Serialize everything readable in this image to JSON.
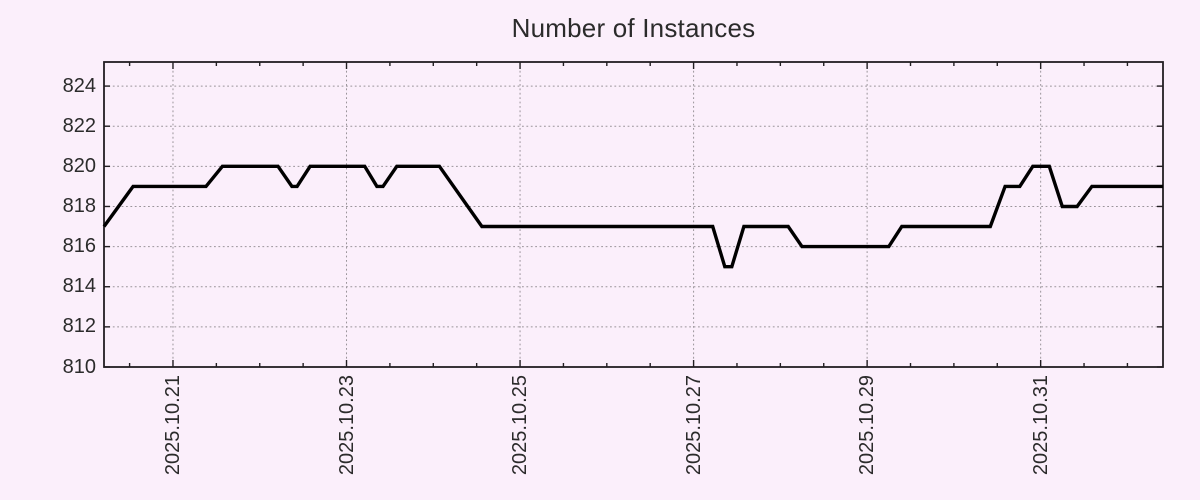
{
  "colors": {
    "background": "#fbeffb",
    "line": "#000000",
    "grid": "#9a949a",
    "axis": "#221e22",
    "text": "#2b2b2b"
  },
  "chart_data": {
    "type": "line",
    "title": "Number of Instances",
    "legend": "none",
    "grid_style": "dotted",
    "x_axis": {
      "tick_labels": [
        "2025.10.21",
        "2025.10.23",
        "2025.10.25",
        "2025.10.27",
        "2025.10.29",
        "2025.10.31"
      ],
      "tick_positions_days": [
        0,
        2,
        4,
        6,
        8,
        10
      ],
      "minor_tick_step_days": 0.5,
      "range_days": [
        -0.795,
        11.41
      ],
      "tick_label_rotation_deg": -90
    },
    "y_axis": {
      "tick_labels": [
        "810",
        "812",
        "814",
        "816",
        "818",
        "820",
        "822",
        "824"
      ],
      "tick_values": [
        810,
        812,
        814,
        816,
        818,
        820,
        822,
        824
      ],
      "gridline_values": [
        812,
        814,
        816,
        818,
        820,
        822,
        824
      ],
      "range": [
        810,
        825.2
      ]
    },
    "series": [
      {
        "name": "instances",
        "color": "#000000",
        "points_day_value": [
          [
            -0.795,
            817
          ],
          [
            -0.46,
            819
          ],
          [
            0.38,
            819
          ],
          [
            0.57,
            820
          ],
          [
            1.21,
            820
          ],
          [
            1.37,
            819
          ],
          [
            1.43,
            819
          ],
          [
            1.58,
            820
          ],
          [
            2.21,
            820
          ],
          [
            2.35,
            819
          ],
          [
            2.42,
            819
          ],
          [
            2.58,
            820
          ],
          [
            3.07,
            820
          ],
          [
            3.56,
            817
          ],
          [
            6.22,
            817
          ],
          [
            6.36,
            815
          ],
          [
            6.44,
            815
          ],
          [
            6.58,
            817
          ],
          [
            7.09,
            817
          ],
          [
            7.25,
            816
          ],
          [
            8.25,
            816
          ],
          [
            8.4,
            817
          ],
          [
            9.42,
            817
          ],
          [
            9.59,
            819
          ],
          [
            9.76,
            819
          ],
          [
            9.91,
            820
          ],
          [
            10.1,
            820
          ],
          [
            10.25,
            818
          ],
          [
            10.42,
            818
          ],
          [
            10.59,
            819
          ],
          [
            11.41,
            819
          ]
        ]
      }
    ]
  }
}
